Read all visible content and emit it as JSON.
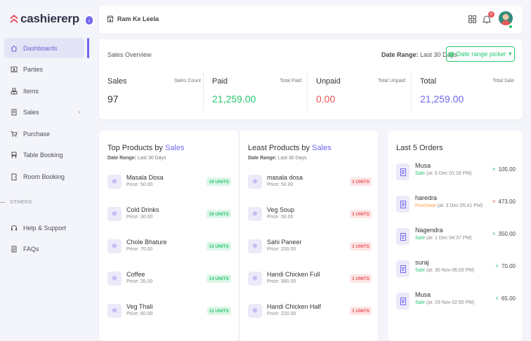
{
  "brand": {
    "name": "cashiererp",
    "accent": "#7367f0",
    "logo_color": "#e74c5c"
  },
  "sidebar": {
    "items": [
      {
        "label": "Dashboards",
        "icon": "home-icon"
      },
      {
        "label": "Parties",
        "icon": "contacts-icon"
      },
      {
        "label": "Items",
        "icon": "items-icon"
      },
      {
        "label": "Sales",
        "icon": "receipt-icon"
      },
      {
        "label": "Purchase",
        "icon": "cart-icon"
      },
      {
        "label": "Table Booking",
        "icon": "table-icon"
      },
      {
        "label": "Room Booking",
        "icon": "room-icon"
      },
      {
        "label": "Help & Support",
        "icon": "headset-icon"
      },
      {
        "label": "FAQs",
        "icon": "faq-icon"
      }
    ],
    "section_label": "OTHERS"
  },
  "topbar": {
    "shop_name": "Ram Ke Leela",
    "notification_count": "0"
  },
  "overview": {
    "title": "Sales Overview",
    "range_label": "Date Range:",
    "range_value": "Last 30 Days",
    "picker_label": "Date range picker",
    "stats": [
      {
        "label": "Sales",
        "sub": "Sales Count",
        "value": "97",
        "color": "#333333"
      },
      {
        "label": "Paid",
        "sub": "Total Paid",
        "value": "21,259.00",
        "color": "#28c76f"
      },
      {
        "label": "Unpaid",
        "sub": "Total Unpaid",
        "value": "0.00",
        "color": "#ea5455"
      },
      {
        "label": "Total",
        "sub": "Total Sale",
        "value": "21,259.00",
        "color": "#7367f0"
      }
    ]
  },
  "top_products": {
    "title_prefix": "Top Products by",
    "title_hl": "Sales",
    "range_label": "Date Range:",
    "range_value": "Last 30 Days",
    "items": [
      {
        "name": "Masala Dosa",
        "price": "Price: 50.00",
        "units": "19 UNITS"
      },
      {
        "name": "Cold Drinks",
        "price": "Price: 30.00",
        "units": "16 UNITS"
      },
      {
        "name": "Chole Bhature",
        "price": "Price: 70.00",
        "units": "15 UNITS"
      },
      {
        "name": "Coffee",
        "price": "Price: 35.00",
        "units": "14 UNITS"
      },
      {
        "name": "Veg Thali",
        "price": "Price: 60.00",
        "units": "11 UNITS"
      }
    ]
  },
  "least_products": {
    "title_prefix": "Least Products by",
    "title_hl": "Sales",
    "range_label": "Date Range:",
    "range_value": "Last 30 Days",
    "items": [
      {
        "name": "masala dosa",
        "price": "Price: 50.00",
        "units": "1 UNITS"
      },
      {
        "name": "Veg Soup",
        "price": "Price: 50.00",
        "units": "1 UNITS"
      },
      {
        "name": "Sahi Paneer",
        "price": "Price: 200.00",
        "units": "1 UNITS"
      },
      {
        "name": "Handi Chicken Full",
        "price": "Price: 380.00",
        "units": "1 UNITS"
      },
      {
        "name": "Handi Chicken Half",
        "price": "Price: 220.00",
        "units": "1 UNITS"
      }
    ]
  },
  "last_orders": {
    "title": "Last 5 Orders",
    "items": [
      {
        "name": "Musa",
        "type": "Sale",
        "when": "(at: 6 Dec 01:28 PM)",
        "amount": "105.00",
        "dir": "up"
      },
      {
        "name": "haredra",
        "type": "Purchase",
        "when": "(at: 3 Dec 05:41 PM)",
        "amount": "473.00",
        "dir": "down"
      },
      {
        "name": "Nagendra",
        "type": "Sale",
        "when": "(at: 1 Dec 04:37 PM)",
        "amount": "350.00",
        "dir": "up"
      },
      {
        "name": "suraj",
        "type": "Sale",
        "when": "(at: 30 Nov 06:05 PM)",
        "amount": "70.00",
        "dir": "up"
      },
      {
        "name": "Musa",
        "type": "Sale",
        "when": "(at: 29 Nov 02:55 PM)",
        "amount": "65.00",
        "dir": "up"
      }
    ]
  }
}
